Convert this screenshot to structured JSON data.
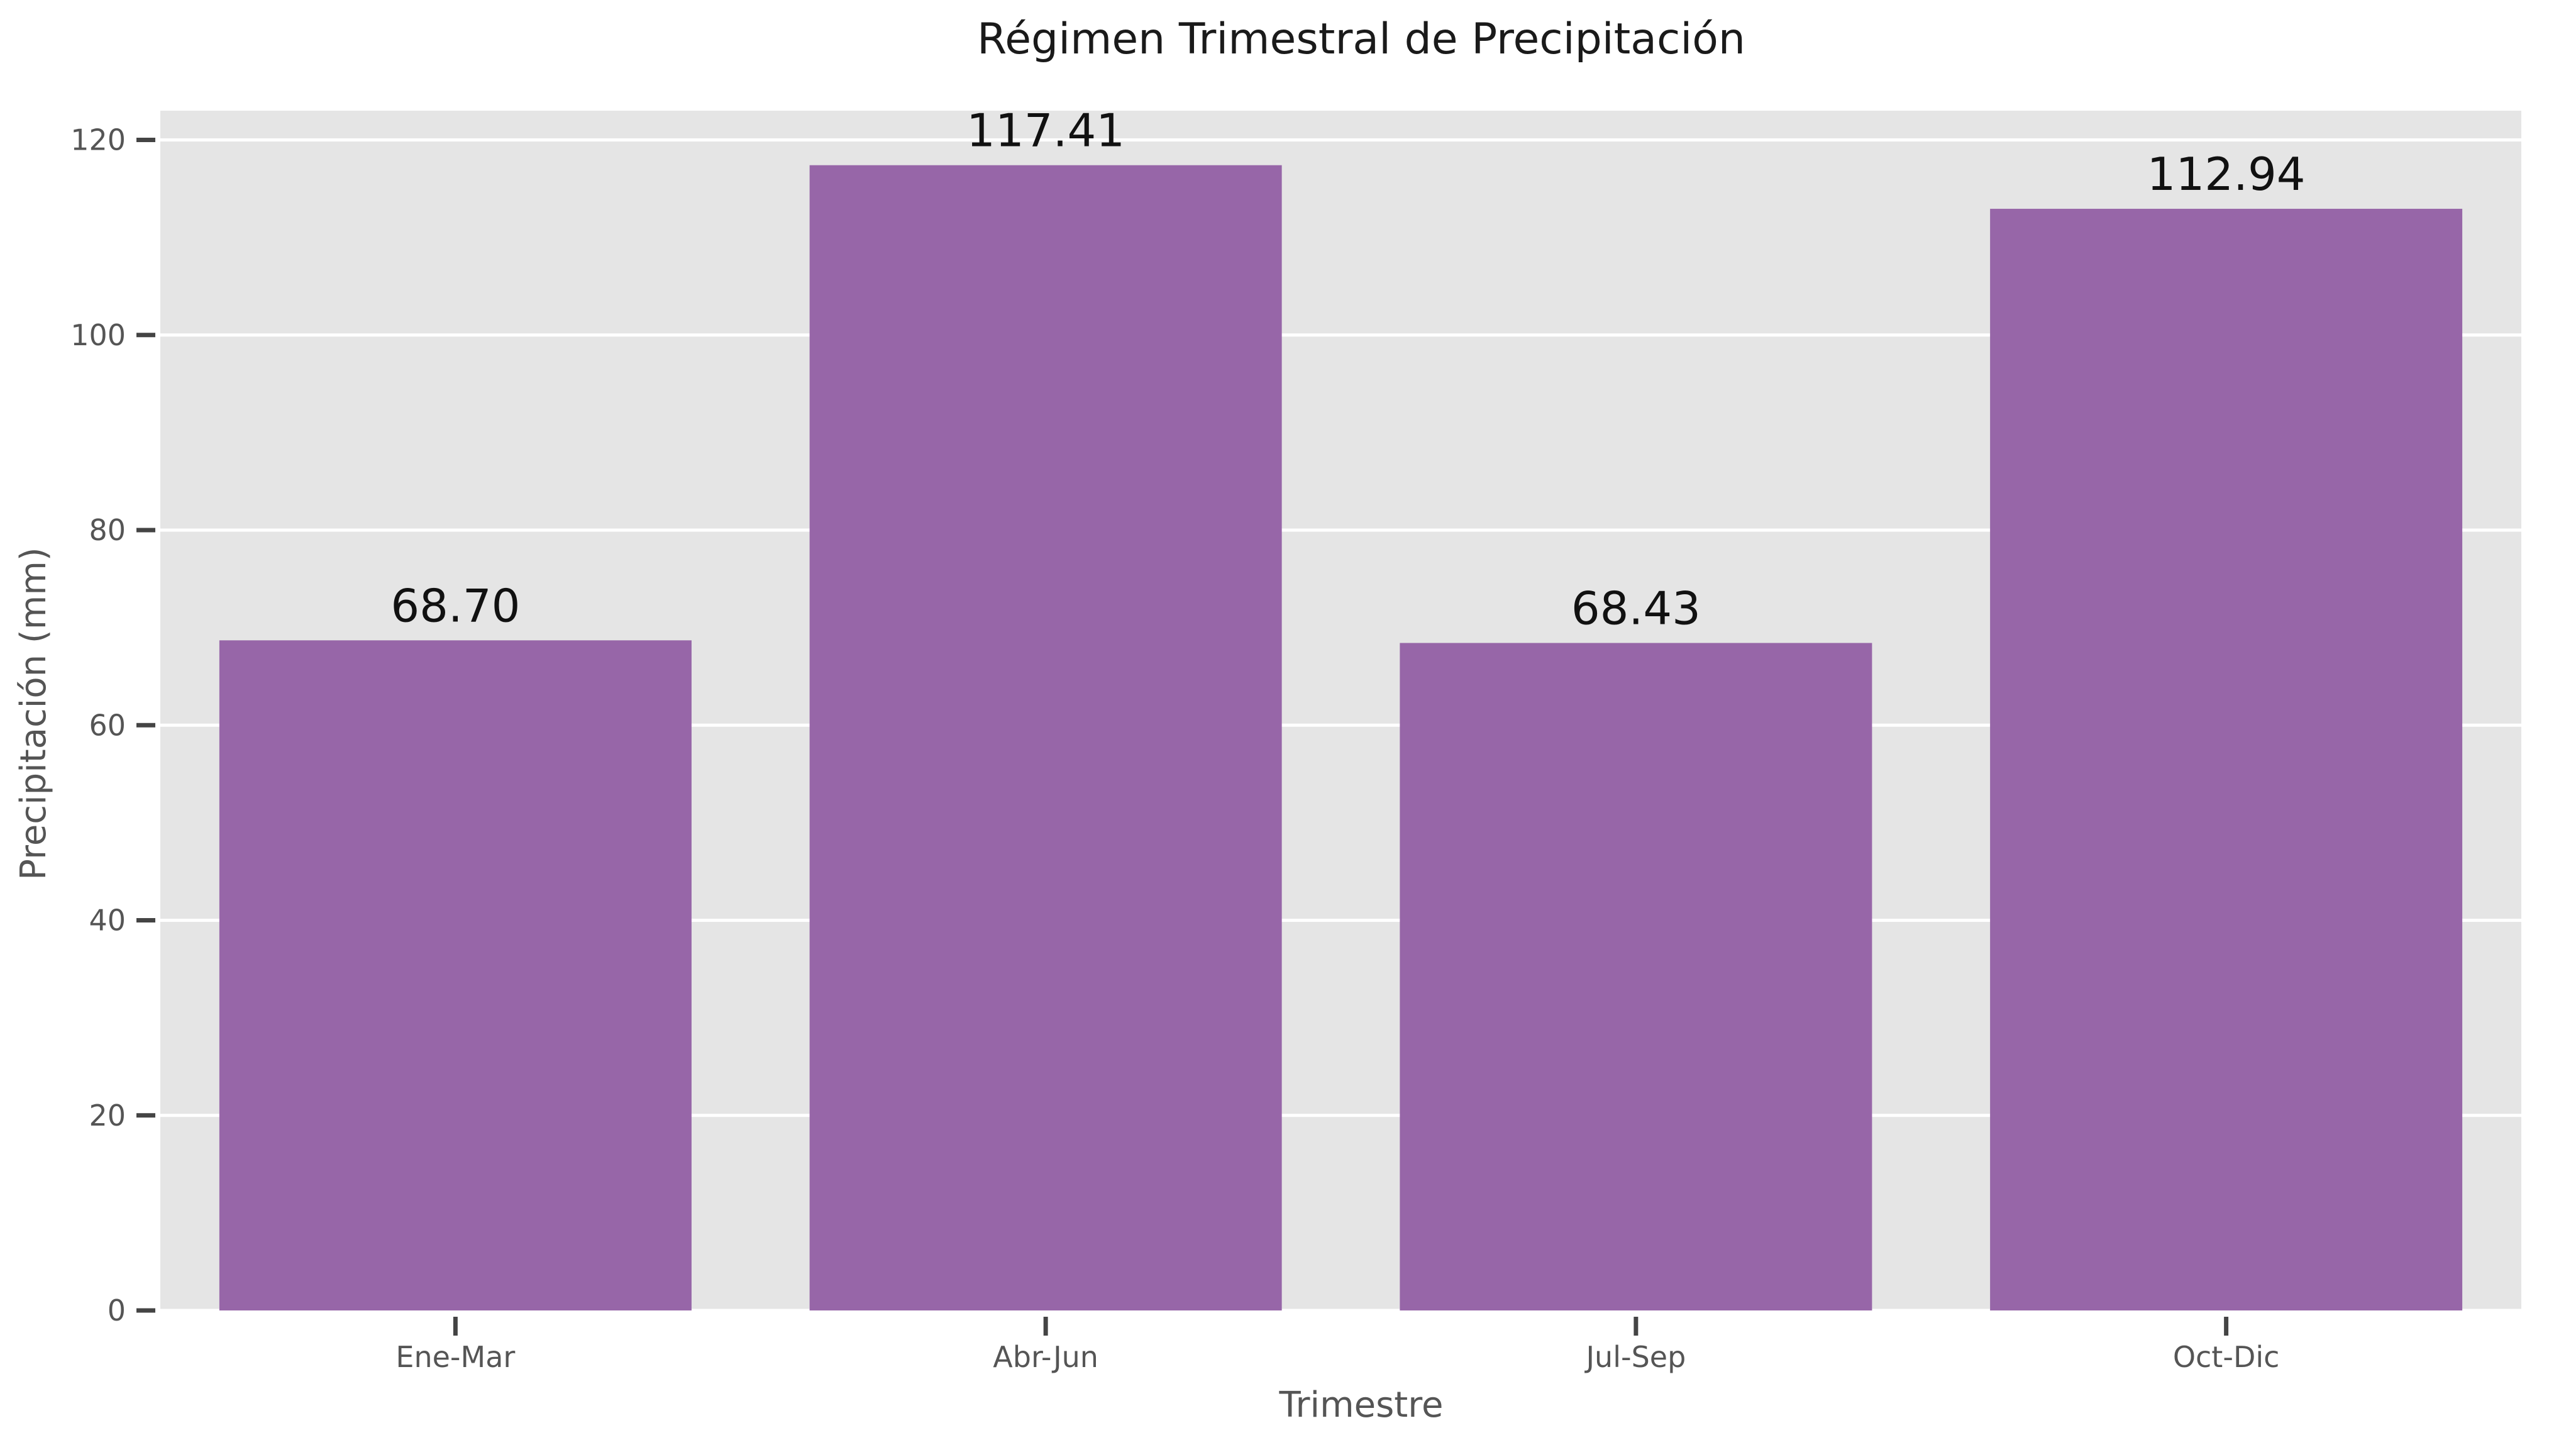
{
  "chart_data": {
    "type": "bar",
    "title": "Régimen Trimestral de Precipitación",
    "xlabel": "Trimestre",
    "ylabel": "Precipitación (mm)",
    "categories": [
      "Ene-Mar",
      "Abr-Jun",
      "Jul-Sep",
      "Oct-Dic"
    ],
    "values": [
      68.7,
      117.41,
      68.43,
      112.94
    ],
    "value_labels": [
      "68.70",
      "117.41",
      "68.43",
      "112.94"
    ],
    "ylim": [
      0,
      123
    ],
    "yticks": [
      0,
      20,
      40,
      60,
      80,
      100,
      120
    ],
    "ytick_labels": [
      "0",
      "20",
      "40",
      "60",
      "80",
      "100",
      "120"
    ],
    "grid": true,
    "grid_axis": "y",
    "legend": "none",
    "colors": {
      "bar": "#9766a8",
      "panel_background": "#e5e5e5",
      "grid": "#ffffff",
      "tick": "#444444"
    }
  }
}
